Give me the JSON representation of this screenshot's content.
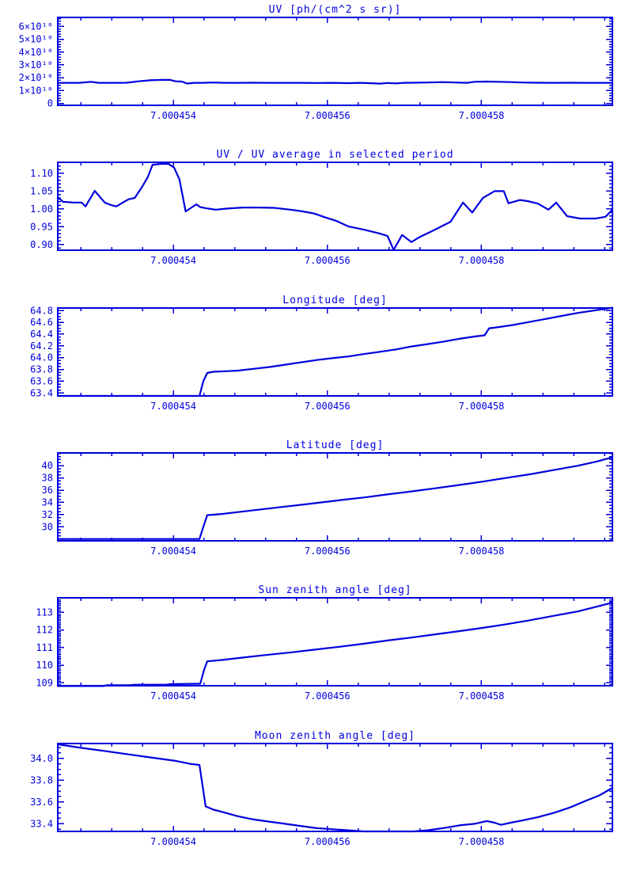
{
  "page": {
    "background": "#ffffff",
    "ink_color": "#0000dd"
  },
  "x_axis": {
    "range": [
      7.0004525,
      7.0004597
    ],
    "ticks": [
      7.000454,
      7.000456,
      7.000458
    ],
    "tick_labels": [
      "7.000454",
      "7.000456",
      "7.000458"
    ],
    "minor_step": 4e-07
  },
  "chart_data": [
    {
      "id": "uv",
      "type": "line",
      "title": "UV [ph/(cm^2 s sr)]",
      "ylabel": "",
      "ylim": [
        -1500000000.0,
        67000000000.0
      ],
      "yticks": [
        0,
        10000000000.0,
        20000000000.0,
        30000000000.0,
        40000000000.0,
        50000000000.0,
        60000000000.0
      ],
      "ytick_labels": [
        "0",
        "1×10¹⁰",
        "2×10¹⁰",
        "3×10¹⁰",
        "4×10¹⁰",
        "5×10¹⁰",
        "6×10¹⁰"
      ],
      "yminor_step": 2000000000.0,
      "x": [
        7.0004525,
        7.00045278,
        7.00045293,
        7.00045303,
        7.00045319,
        7.00045339,
        7.00045355,
        7.0004537,
        7.00045386,
        7.00045396,
        7.00045403,
        7.00045411,
        7.00045418,
        7.00045427,
        7.00045437,
        7.00045452,
        7.00045468,
        7.00045483,
        7.00045504,
        7.00045524,
        7.00045545,
        7.00045565,
        7.00045586,
        7.00045606,
        7.00045627,
        7.00045642,
        7.00045658,
        7.00045668,
        7.00045678,
        7.00045689,
        7.00045699,
        7.00045709,
        7.0004573,
        7.0004575,
        7.00045766,
        7.00045781,
        7.00045791,
        7.00045807,
        7.00045822,
        7.00045838,
        7.00045853,
        7.00045873,
        7.00045894,
        7.00045915,
        7.00045935,
        7.00045956,
        7.0004597
      ],
      "y": [
        16000000000.0,
        16000000000.0,
        16800000000.0,
        16000000000.0,
        16000000000.0,
        16100000000.0,
        17200000000.0,
        18000000000.0,
        18400000000.0,
        18300000000.0,
        17200000000.0,
        17000000000.0,
        15500000000.0,
        16000000000.0,
        16000000000.0,
        16300000000.0,
        16000000000.0,
        16000000000.0,
        16100000000.0,
        16000000000.0,
        16000000000.0,
        16000000000.0,
        15900000000.0,
        16000000000.0,
        15800000000.0,
        16000000000.0,
        15700000000.0,
        15400000000.0,
        15900000000.0,
        15600000000.0,
        16000000000.0,
        16100000000.0,
        16300000000.0,
        16600000000.0,
        16300000000.0,
        16000000000.0,
        16800000000.0,
        17000000000.0,
        16800000000.0,
        16600000000.0,
        16300000000.0,
        16100000000.0,
        16000000000.0,
        16100000000.0,
        16000000000.0,
        16000000000.0,
        16000000000.0
      ]
    },
    {
      "id": "uv-ratio",
      "type": "line",
      "title": "UV / UV average in selected period",
      "ylabel": "",
      "ylim": [
        0.884,
        1.131
      ],
      "yticks": [
        0.9,
        0.95,
        1.0,
        1.05,
        1.1
      ],
      "ytick_labels": [
        "0.90",
        "0.95",
        "1.00",
        "1.05",
        "1.10"
      ],
      "yminor_step": 0.01,
      "x": [
        7.0004525,
        7.00045257,
        7.00045271,
        7.00045281,
        7.00045286,
        7.00045298,
        7.00045311,
        7.00045319,
        7.00045326,
        7.00045336,
        7.00045342,
        7.0004535,
        7.0004536,
        7.00045367,
        7.00045373,
        7.00045386,
        7.00045394,
        7.00045401,
        7.00045408,
        7.00045416,
        7.0004543,
        7.00045435,
        7.00045445,
        7.00045455,
        7.0004547,
        7.0004549,
        7.00045511,
        7.00045531,
        7.00045552,
        7.00045568,
        7.00045583,
        7.00045596,
        7.00045612,
        7.00045627,
        7.00045647,
        7.00045668,
        7.00045678,
        7.00045686,
        7.00045697,
        7.00045709,
        7.00045719,
        7.0004574,
        7.0004576,
        7.00045776,
        7.00045788,
        7.00045802,
        7.00045817,
        7.00045829,
        7.00045835,
        7.0004585,
        7.0004586,
        7.00045873,
        7.00045887,
        7.00045897,
        7.00045911,
        7.00045928,
        7.00045948,
        7.00045961,
        7.0004597
      ],
      "y": [
        1.033,
        1.02,
        1.018,
        1.018,
        1.007,
        1.051,
        1.018,
        1.011,
        1.007,
        1.02,
        1.027,
        1.031,
        1.064,
        1.09,
        1.124,
        1.127,
        1.126,
        1.116,
        1.083,
        0.993,
        1.013,
        1.005,
        1.001,
        0.998,
        1.001,
        1.004,
        1.004,
        1.003,
        0.998,
        0.993,
        0.987,
        0.977,
        0.966,
        0.951,
        0.942,
        0.931,
        0.924,
        0.885,
        0.927,
        0.907,
        0.92,
        0.942,
        0.964,
        1.018,
        0.99,
        1.031,
        1.05,
        1.05,
        1.016,
        1.025,
        1.022,
        1.015,
        0.998,
        1.018,
        0.98,
        0.973,
        0.973,
        0.978,
        0.998
      ]
    },
    {
      "id": "longitude",
      "type": "line",
      "title": "Longitude [deg]",
      "ylabel": "",
      "ylim": [
        63.35,
        64.844
      ],
      "yticks": [
        63.4,
        63.6,
        63.8,
        64.0,
        64.2,
        64.4,
        64.6,
        64.8
      ],
      "ytick_labels": [
        "63.4",
        "63.6",
        "63.8",
        "64.0",
        "64.2",
        "64.4",
        "64.6",
        "64.8"
      ],
      "yminor_step": 0.05,
      "x": [
        7.0004525,
        7.00045329,
        7.00045401,
        7.00045434,
        7.00045439,
        7.00045444,
        7.00045452,
        7.00045468,
        7.00045483,
        7.00045504,
        7.00045524,
        7.00045545,
        7.00045565,
        7.00045586,
        7.00045606,
        7.00045627,
        7.00045647,
        7.00045668,
        7.00045689,
        7.00045709,
        7.0004573,
        7.0004575,
        7.00045771,
        7.00045791,
        7.00045804,
        7.0004581,
        7.00045822,
        7.00045843,
        7.00045863,
        7.00045884,
        7.00045904,
        7.00045925,
        7.00045945,
        7.00045961,
        7.0004597
      ],
      "y": [
        63.35,
        63.35,
        63.35,
        63.35,
        63.6,
        63.74,
        63.76,
        63.77,
        63.78,
        63.81,
        63.84,
        63.88,
        63.92,
        63.96,
        63.99,
        64.02,
        64.06,
        64.1,
        64.14,
        64.19,
        64.23,
        64.27,
        64.32,
        64.36,
        64.38,
        64.5,
        64.52,
        64.56,
        64.61,
        64.66,
        64.71,
        64.76,
        64.8,
        64.83,
        64.85
      ]
    },
    {
      "id": "latitude",
      "type": "line",
      "title": "Latitude [deg]",
      "ylabel": "",
      "ylim": [
        27.7,
        42.1
      ],
      "yticks": [
        30,
        32,
        34,
        36,
        38,
        40
      ],
      "ytick_labels": [
        "30",
        "32",
        "34",
        "36",
        "38",
        "40"
      ],
      "yminor_step": 0.5,
      "x": [
        7.0004525,
        7.00045329,
        7.00045401,
        7.00045434,
        7.00045439,
        7.00045444,
        7.00045463,
        7.00045483,
        7.00045514,
        7.00045545,
        7.00045576,
        7.00045606,
        7.00045622,
        7.00045647,
        7.00045678,
        7.00045709,
        7.0004574,
        7.00045771,
        7.00045802,
        7.00045832,
        7.00045863,
        7.00045894,
        7.00045925,
        7.0004595,
        7.0004597
      ],
      "y": [
        28.0,
        28.0,
        28.0,
        28.0,
        30.0,
        31.9,
        32.1,
        32.4,
        32.85,
        33.3,
        33.75,
        34.2,
        34.45,
        34.8,
        35.3,
        35.8,
        36.3,
        36.85,
        37.4,
        38.0,
        38.6,
        39.3,
        40.0,
        40.7,
        41.4
      ]
    },
    {
      "id": "sun-zenith",
      "type": "line",
      "title": "Sun zenith angle [deg]",
      "ylabel": "",
      "ylim": [
        108.84,
        113.82
      ],
      "yticks": [
        109,
        110,
        111,
        112,
        113
      ],
      "ytick_labels": [
        "109",
        "110",
        "111",
        "112",
        "113"
      ],
      "yminor_step": 0.1,
      "x": [
        7.0004525,
        7.00045288,
        7.00045309,
        7.00045314,
        7.00045344,
        7.0004535,
        7.00045391,
        7.00045396,
        7.00045432,
        7.00045435,
        7.0004544,
        7.00045444,
        7.00045463,
        7.00045493,
        7.00045524,
        7.00045555,
        7.00045586,
        7.00045617,
        7.00045647,
        7.00045678,
        7.00045709,
        7.0004574,
        7.00045771,
        7.00045802,
        7.00045832,
        7.00045863,
        7.00045894,
        7.00045925,
        7.0004595,
        7.0004597
      ],
      "y": [
        108.82,
        108.82,
        108.82,
        108.87,
        108.87,
        108.9,
        108.9,
        108.93,
        108.95,
        108.95,
        109.75,
        110.22,
        110.3,
        110.45,
        110.6,
        110.74,
        110.9,
        111.05,
        111.22,
        111.4,
        111.57,
        111.75,
        111.93,
        112.12,
        112.32,
        112.55,
        112.8,
        113.05,
        113.32,
        113.55
      ]
    },
    {
      "id": "moon-zenith",
      "type": "line",
      "title": "Moon zenith angle [deg]",
      "ylabel": "",
      "ylim": [
        33.33,
        34.137
      ],
      "yticks": [
        33.4,
        33.6,
        33.8,
        34.0
      ],
      "ytick_labels": [
        "33.4",
        "33.6",
        "33.8",
        "34.0"
      ],
      "yminor_step": 0.05,
      "x": [
        7.0004525,
        7.00045278,
        7.00045309,
        7.00045339,
        7.0004537,
        7.00045401,
        7.00045422,
        7.00045434,
        7.00045438,
        7.00045442,
        7.00045452,
        7.00045468,
        7.00045483,
        7.00045504,
        7.00045524,
        7.00045545,
        7.00045565,
        7.00045586,
        7.00045606,
        7.00045627,
        7.00045647,
        7.00045668,
        7.00045689,
        7.00045712,
        7.0004573,
        7.0004575,
        7.00045771,
        7.00045791,
        7.00045807,
        7.00045817,
        7.00045825,
        7.00045838,
        7.00045853,
        7.00045873,
        7.00045894,
        7.00045915,
        7.00045935,
        7.00045953,
        7.0004597
      ],
      "y": [
        34.13,
        34.1,
        34.07,
        34.04,
        34.01,
        33.98,
        33.95,
        33.94,
        33.75,
        33.56,
        33.53,
        33.5,
        33.47,
        33.44,
        33.42,
        33.4,
        33.38,
        33.36,
        33.35,
        33.34,
        33.33,
        33.33,
        33.33,
        33.33,
        33.34,
        33.36,
        33.385,
        33.4,
        33.425,
        33.41,
        33.39,
        33.41,
        33.43,
        33.46,
        33.5,
        33.55,
        33.61,
        33.66,
        33.73
      ]
    }
  ]
}
